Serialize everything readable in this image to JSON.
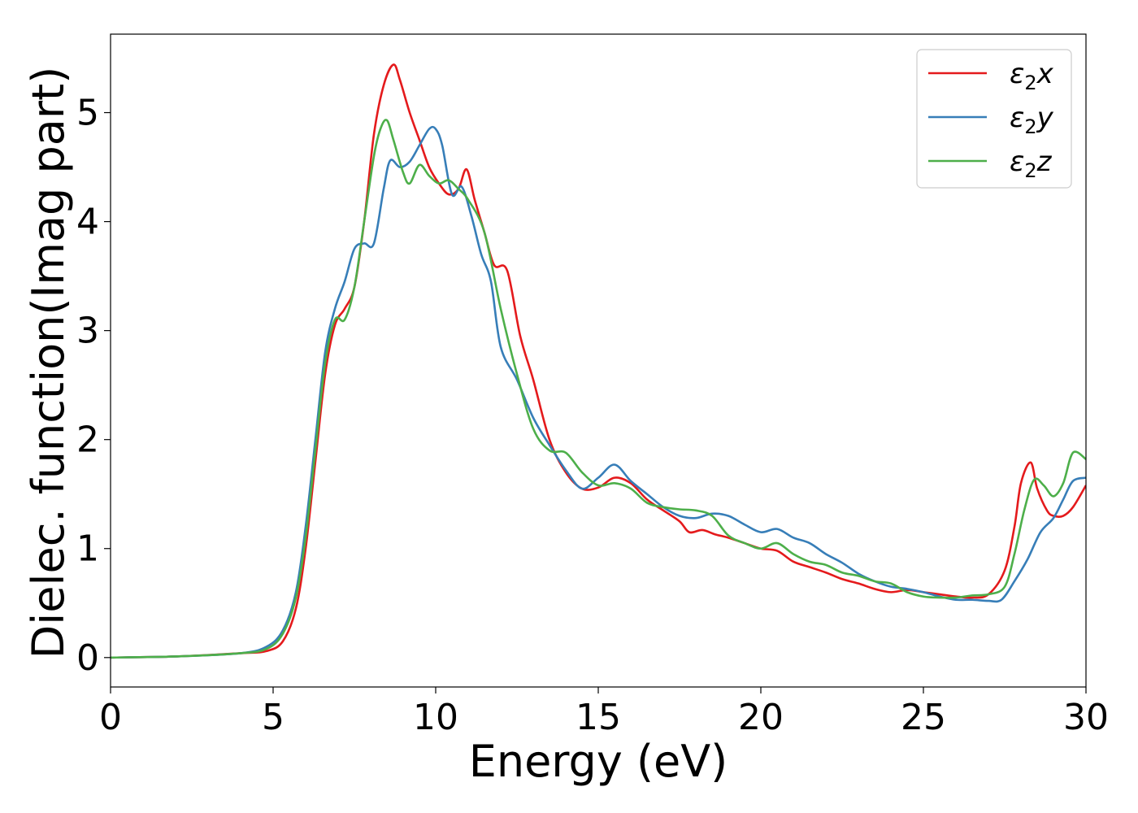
{
  "chart_data": {
    "type": "line",
    "title": "",
    "xlabel": "Energy (eV)",
    "ylabel": "Dielec. function(Imag part)",
    "xlim": [
      0,
      30
    ],
    "ylim": [
      -0.27,
      5.72
    ],
    "xticks": [
      0,
      5,
      10,
      15,
      20,
      25,
      30
    ],
    "xtick_labels": [
      "0",
      "5",
      "10",
      "15",
      "20",
      "25",
      "30"
    ],
    "yticks": [
      0,
      1,
      2,
      3,
      4,
      5
    ],
    "ytick_labels": [
      "0",
      "1",
      "2",
      "3",
      "4",
      "5"
    ],
    "grid": false,
    "legend_position": "top-right",
    "series": [
      {
        "name": "ε₂x",
        "legend_main": "ε",
        "legend_sub": "2",
        "legend_suffix": "x",
        "color": "#e41a1c",
        "x": [
          0,
          2,
          4,
          4.8,
          5.3,
          5.7,
          6.0,
          6.3,
          6.6,
          6.9,
          7.2,
          7.5,
          7.8,
          8.1,
          8.4,
          8.7,
          8.9,
          9.2,
          9.5,
          9.8,
          10.1,
          10.4,
          10.7,
          10.95,
          11.2,
          11.5,
          11.8,
          12.2,
          12.6,
          13.0,
          13.5,
          14.0,
          14.5,
          15.0,
          15.5,
          16.0,
          16.5,
          17.0,
          17.5,
          17.8,
          18.2,
          18.6,
          19.0,
          19.5,
          20.0,
          20.5,
          21.0,
          21.5,
          22.0,
          22.5,
          23.0,
          23.5,
          24.0,
          24.5,
          25.0,
          25.5,
          26.0,
          26.5,
          27.0,
          27.5,
          27.8,
          28.0,
          28.3,
          28.5,
          28.8,
          29.0,
          29.3,
          29.6,
          30.0
        ],
        "values": [
          0,
          0.01,
          0.04,
          0.06,
          0.15,
          0.45,
          1.0,
          1.8,
          2.6,
          3.05,
          3.2,
          3.4,
          4.0,
          4.8,
          5.25,
          5.44,
          5.3,
          5.0,
          4.75,
          4.5,
          4.35,
          4.25,
          4.3,
          4.48,
          4.2,
          3.9,
          3.6,
          3.55,
          2.95,
          2.55,
          2.0,
          1.7,
          1.55,
          1.56,
          1.65,
          1.6,
          1.45,
          1.35,
          1.25,
          1.15,
          1.17,
          1.13,
          1.1,
          1.05,
          1.0,
          0.98,
          0.88,
          0.83,
          0.78,
          0.72,
          0.68,
          0.63,
          0.6,
          0.62,
          0.6,
          0.58,
          0.56,
          0.55,
          0.58,
          0.8,
          1.2,
          1.6,
          1.79,
          1.55,
          1.35,
          1.3,
          1.3,
          1.38,
          1.58
        ]
      },
      {
        "name": "ε₂y",
        "legend_main": "ε",
        "legend_sub": "2",
        "legend_suffix": "y",
        "color": "#377eb8",
        "x": [
          0,
          2,
          4,
          4.8,
          5.3,
          5.7,
          6.0,
          6.3,
          6.6,
          6.9,
          7.2,
          7.5,
          7.8,
          8.1,
          8.4,
          8.6,
          8.9,
          9.2,
          9.5,
          9.8,
          10.0,
          10.2,
          10.5,
          10.8,
          11.1,
          11.4,
          11.7,
          12.0,
          12.5,
          13.0,
          13.5,
          14.0,
          14.5,
          15.0,
          15.5,
          16.0,
          16.5,
          17.0,
          17.5,
          18.0,
          18.5,
          19.0,
          19.5,
          20.0,
          20.5,
          21.0,
          21.5,
          22.0,
          22.5,
          23.0,
          23.5,
          24.0,
          24.5,
          25.0,
          25.5,
          26.0,
          26.5,
          27.0,
          27.4,
          27.8,
          28.2,
          28.6,
          29.0,
          29.3,
          29.6,
          30.0
        ],
        "values": [
          0,
          0.01,
          0.04,
          0.1,
          0.25,
          0.6,
          1.2,
          2.0,
          2.8,
          3.2,
          3.45,
          3.75,
          3.8,
          3.8,
          4.3,
          4.56,
          4.5,
          4.55,
          4.7,
          4.85,
          4.85,
          4.7,
          4.25,
          4.32,
          4.05,
          3.7,
          3.45,
          2.85,
          2.55,
          2.2,
          1.95,
          1.72,
          1.55,
          1.65,
          1.77,
          1.62,
          1.5,
          1.38,
          1.3,
          1.28,
          1.32,
          1.3,
          1.22,
          1.15,
          1.18,
          1.1,
          1.05,
          0.95,
          0.87,
          0.77,
          0.7,
          0.65,
          0.63,
          0.6,
          0.56,
          0.53,
          0.53,
          0.52,
          0.53,
          0.7,
          0.9,
          1.15,
          1.28,
          1.45,
          1.62,
          1.65
        ]
      },
      {
        "name": "ε₂z",
        "legend_main": "ε",
        "legend_sub": "2",
        "legend_suffix": "z",
        "color": "#4daf4a",
        "x": [
          0,
          2,
          4,
          4.8,
          5.3,
          5.7,
          6.0,
          6.3,
          6.6,
          6.9,
          7.2,
          7.5,
          7.8,
          8.1,
          8.3,
          8.5,
          8.7,
          9.0,
          9.2,
          9.5,
          9.8,
          10.1,
          10.4,
          10.7,
          11.0,
          11.5,
          12.0,
          12.5,
          13.0,
          13.5,
          14.0,
          14.5,
          15.0,
          15.5,
          16.0,
          16.5,
          17.0,
          17.5,
          18.0,
          18.5,
          19.0,
          19.5,
          20.0,
          20.5,
          21.0,
          21.5,
          22.0,
          22.5,
          23.0,
          23.5,
          24.0,
          24.5,
          25.0,
          25.5,
          26.0,
          26.5,
          27.0,
          27.5,
          27.8,
          28.1,
          28.4,
          28.7,
          29.0,
          29.3,
          29.6,
          30.0
        ],
        "values": [
          0,
          0.01,
          0.04,
          0.08,
          0.22,
          0.55,
          1.1,
          1.9,
          2.7,
          3.1,
          3.1,
          3.4,
          4.0,
          4.6,
          4.85,
          4.93,
          4.75,
          4.45,
          4.35,
          4.52,
          4.42,
          4.35,
          4.38,
          4.3,
          4.2,
          3.9,
          3.2,
          2.6,
          2.1,
          1.9,
          1.88,
          1.7,
          1.58,
          1.6,
          1.55,
          1.42,
          1.38,
          1.36,
          1.35,
          1.3,
          1.12,
          1.05,
          1.0,
          1.05,
          0.95,
          0.88,
          0.85,
          0.78,
          0.75,
          0.7,
          0.68,
          0.6,
          0.56,
          0.55,
          0.55,
          0.57,
          0.58,
          0.65,
          0.95,
          1.35,
          1.63,
          1.58,
          1.48,
          1.6,
          1.88,
          1.82
        ]
      }
    ]
  }
}
